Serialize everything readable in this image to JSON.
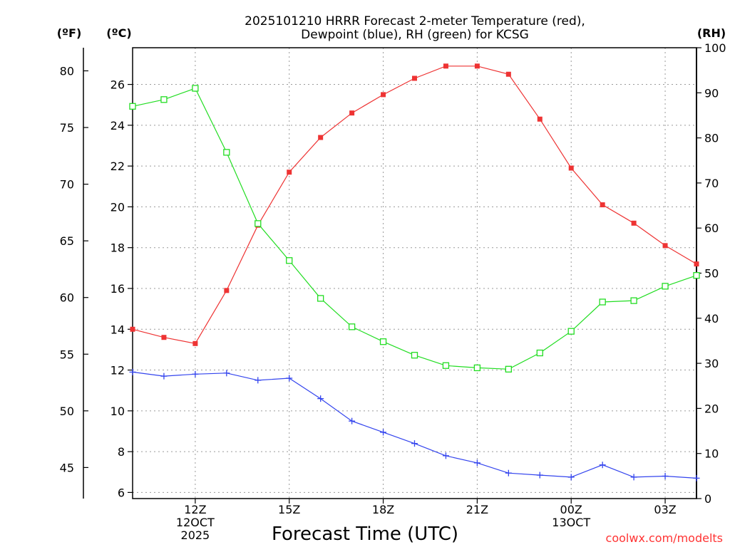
{
  "chart_data": {
    "type": "line",
    "title_lines": [
      "2025101210 HRRR Forecast 2-meter Temperature (red),",
      "Dewpoint (blue), RH (green) for KCSG"
    ],
    "xlabel": "Forecast Time (UTC)",
    "credit": "coolwx.com/modelts",
    "units": {
      "f": "(ºF)",
      "c": "(ºC)",
      "rh": "(RH)"
    },
    "x_hours": [
      10,
      11,
      12,
      13,
      14,
      15,
      16,
      17,
      18,
      19,
      20,
      21,
      22,
      23,
      24,
      25,
      26,
      27,
      28
    ],
    "xlim": [
      10,
      28
    ],
    "x_ticks": [
      {
        "hour": 12,
        "lines": [
          "12Z",
          "12OCT",
          "2025"
        ]
      },
      {
        "hour": 15,
        "lines": [
          "15Z"
        ]
      },
      {
        "hour": 18,
        "lines": [
          "18Z"
        ]
      },
      {
        "hour": 21,
        "lines": [
          "21Z"
        ]
      },
      {
        "hour": 24,
        "lines": [
          "00Z",
          "13OCT"
        ]
      },
      {
        "hour": 27,
        "lines": [
          "03Z"
        ]
      }
    ],
    "celsius_axis": {
      "lim": [
        5.7,
        27.8
      ],
      "ticks": [
        6,
        8,
        10,
        12,
        14,
        16,
        18,
        20,
        22,
        24,
        26
      ]
    },
    "fahrenheit_axis": {
      "ticks": [
        45,
        50,
        55,
        60,
        65,
        70,
        75,
        80
      ]
    },
    "rh_axis": {
      "lim": [
        0,
        100
      ],
      "ticks": [
        0,
        10,
        20,
        30,
        40,
        50,
        60,
        70,
        80,
        90,
        100
      ]
    },
    "series": [
      {
        "name": "Temperature",
        "axis": "c",
        "color": "#ee3333",
        "marker": "filled-square",
        "values": [
          14.0,
          13.6,
          13.3,
          15.9,
          19.1,
          21.7,
          23.4,
          24.6,
          25.5,
          26.3,
          26.9,
          26.9,
          26.5,
          24.3,
          21.9,
          20.1,
          19.2,
          18.1,
          17.2
        ]
      },
      {
        "name": "Dewpoint",
        "axis": "c",
        "color": "#3344ee",
        "marker": "plus",
        "values": [
          11.9,
          11.7,
          11.8,
          11.85,
          11.5,
          11.6,
          10.6,
          9.5,
          8.95,
          8.4,
          7.8,
          7.45,
          6.95,
          6.85,
          6.75,
          7.35,
          6.75,
          6.8,
          6.7
        ]
      },
      {
        "name": "RH",
        "axis": "rh",
        "color": "#22dd22",
        "marker": "open-square",
        "values": [
          87,
          88.5,
          91,
          76.8,
          61,
          52.8,
          44.4,
          38.1,
          34.8,
          31.8,
          29.5,
          29.0,
          28.7,
          32.3,
          37.1,
          43.6,
          43.9,
          47.1,
          49.5
        ]
      }
    ]
  }
}
